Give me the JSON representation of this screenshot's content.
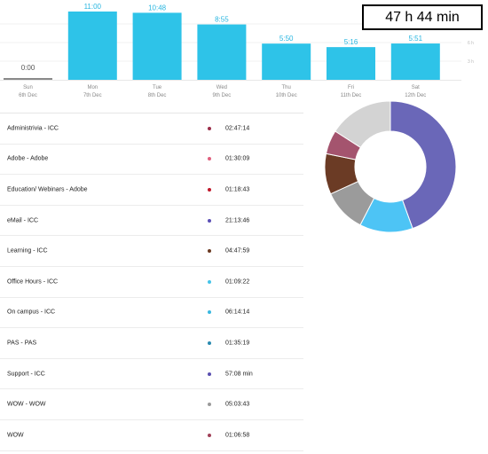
{
  "total_time": "47 h 44 min",
  "chart_data": {
    "type": "bar",
    "categories": [
      "Sun",
      "Mon",
      "Tue",
      "Wed",
      "Thu",
      "Fri",
      "Sat"
    ],
    "dates": [
      "6th Dec",
      "7th Dec",
      "8th Dec",
      "9th Dec",
      "10th Dec",
      "11th Dec",
      "12th Dec"
    ],
    "value_labels": [
      "0:00",
      "11:00",
      "10:48",
      "8:55",
      "5:50",
      "5:16",
      "5:51"
    ],
    "values_hours": [
      0,
      11.0,
      10.8,
      8.917,
      5.833,
      5.267,
      5.85
    ],
    "ylim": [
      0,
      12
    ],
    "y_tick_labels": [
      "6 h",
      "3 h"
    ],
    "y_tick_values": [
      6,
      3
    ],
    "bar_color": "#2ec3e8",
    "zero_bar_color": "#8a8a8a"
  },
  "activities": [
    {
      "name": "Administrivia - ICC",
      "duration": "02:47:14",
      "color": "#9b2d4a"
    },
    {
      "name": "Adobe - Adobe",
      "duration": "01:30:09",
      "color": "#e0607e"
    },
    {
      "name": "Education/ Webinars - Adobe",
      "duration": "01:18:43",
      "color": "#c0182a"
    },
    {
      "name": "eMail - ICC",
      "duration": "21:13:46",
      "color": "#5b4fb5"
    },
    {
      "name": "Learning - ICC",
      "duration": "04:47:59",
      "color": "#6b3a22"
    },
    {
      "name": "Office Hours - ICC",
      "duration": "01:09:22",
      "color": "#45c3e8"
    },
    {
      "name": "On campus - ICC",
      "duration": "06:14:14",
      "color": "#3ab8e0"
    },
    {
      "name": "PAS - PAS",
      "duration": "01:35:19",
      "color": "#2a8ab0"
    },
    {
      "name": "Support - ICC",
      "duration": "57:08 min",
      "color": "#5a4fb0"
    },
    {
      "name": "WOW - WOW",
      "duration": "05:03:43",
      "color": "#9a9a9a"
    },
    {
      "name": "WOW",
      "duration": "01:06:58",
      "color": "#a04058"
    }
  ],
  "donut_chart": {
    "type": "pie",
    "segments": [
      {
        "value": 44.5,
        "color": "#6a67b8"
      },
      {
        "value": 13.1,
        "color": "#4dc4f5"
      },
      {
        "value": 10.6,
        "color": "#9b9b9b"
      },
      {
        "value": 10.0,
        "color": "#6b3b25"
      },
      {
        "value": 5.9,
        "color": "#a4546e"
      },
      {
        "value": 15.9,
        "color": "#d3d3d3"
      }
    ]
  }
}
